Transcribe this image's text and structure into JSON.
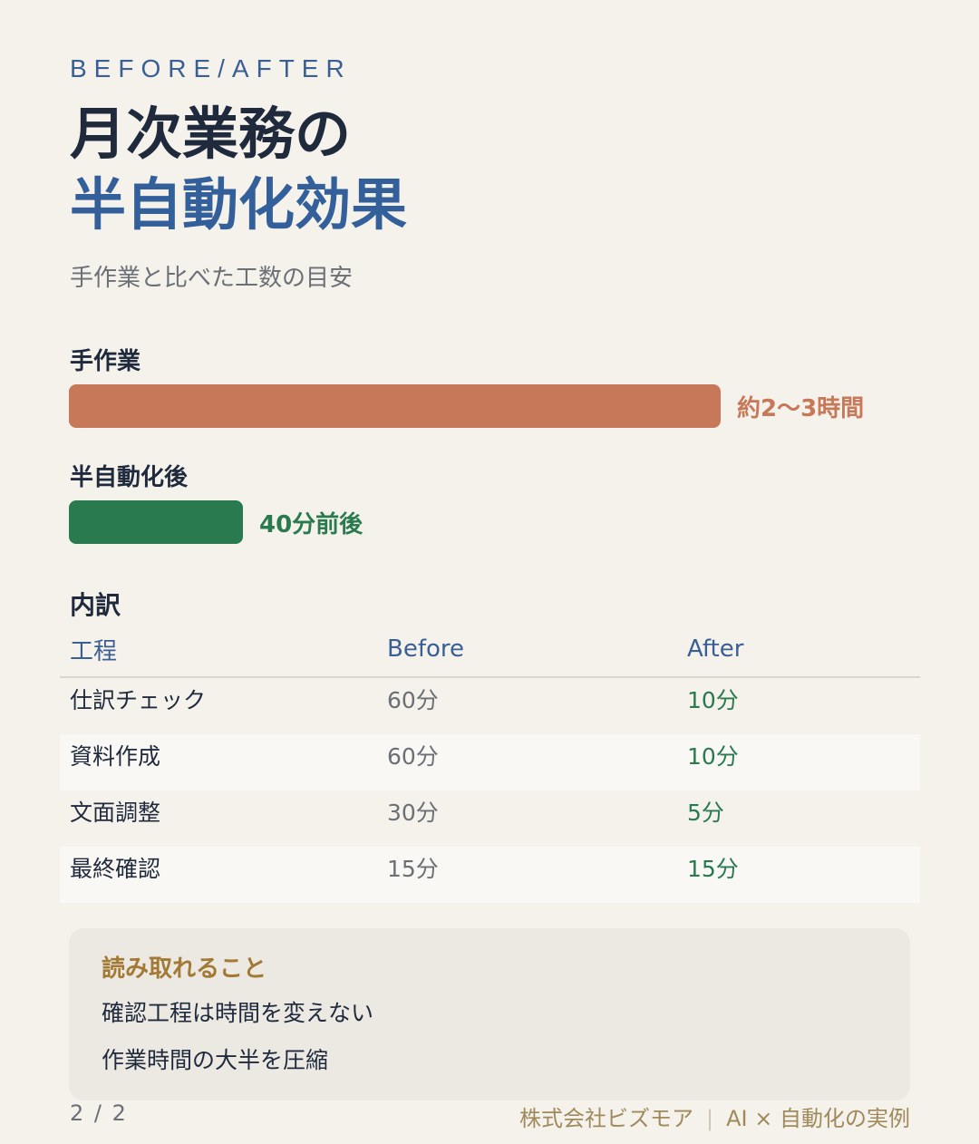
{
  "header": {
    "eyebrow": "BEFORE/AFTER",
    "title_line1": "月次業務の",
    "title_line2": "半自動化効果",
    "subtitle": "手作業と比べた工数の目安"
  },
  "chart_data": {
    "type": "bar",
    "orientation": "horizontal",
    "categories": [
      "手作業",
      "半自動化後"
    ],
    "value_labels": [
      "約2〜3時間",
      "40分前後"
    ],
    "values_minutes": [
      150,
      40
    ],
    "colors": [
      "#c77858",
      "#2a7a50"
    ]
  },
  "breakdown": {
    "title": "内訳",
    "headers": [
      "工程",
      "Before",
      "After"
    ],
    "rows": [
      {
        "step": "仕訳チェック",
        "before": "60分",
        "after": "10分"
      },
      {
        "step": "資料作成",
        "before": "60分",
        "after": "10分"
      },
      {
        "step": "文面調整",
        "before": "30分",
        "after": "5分"
      },
      {
        "step": "最終確認",
        "before": "15分",
        "after": "15分"
      }
    ]
  },
  "insight": {
    "title": "読み取れること",
    "items": [
      "確認工程は時間を変えない",
      "作業時間の大半を圧縮"
    ]
  },
  "footer": {
    "page": "2 / 2",
    "company": "株式会社ビズモア",
    "separator": "|",
    "series": "AI × 自動化の実例"
  },
  "colors": {
    "background": "#f5f2ec",
    "accent_blue": "#33609a",
    "manual_bar": "#c77858",
    "auto_bar": "#2a7a50",
    "insight_title": "#a37a35"
  }
}
